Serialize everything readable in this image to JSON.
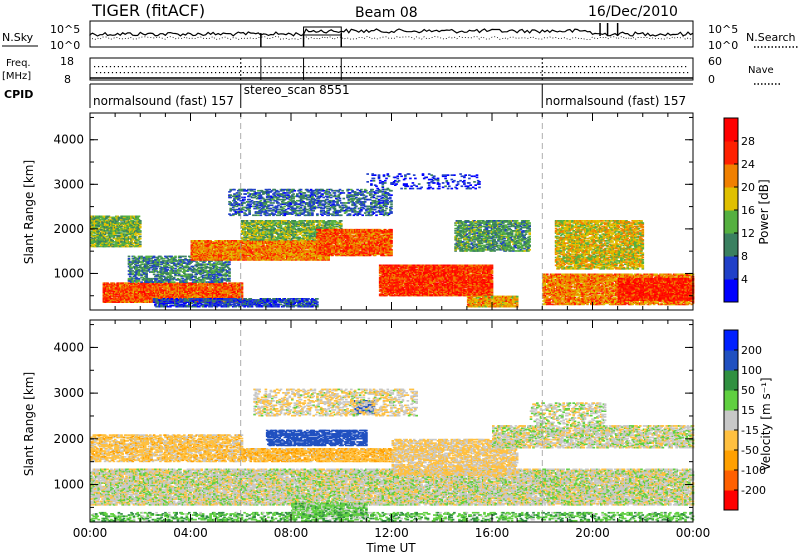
{
  "header": {
    "radar": "TIGER (fitACF)",
    "beam": "Beam 08",
    "date": "16/Dec/2010"
  },
  "status_panels": {
    "nsky_label": "N.Sky",
    "nsky_ticks": [
      "10^5",
      "10^0"
    ],
    "nsearch_label": "N.Search",
    "nsearch_ticks": [
      "10^5",
      "10^0"
    ],
    "freq_label": "Freq.",
    "freq_unit": "[MHz]",
    "freq_ticks": [
      "18",
      "8"
    ],
    "nave_label": "Nave",
    "nave_ticks": [
      "60",
      "0"
    ],
    "cpid_label": "CPID"
  },
  "cpid_segments": [
    {
      "label": "normalsound (fast) 157",
      "start_hour": 0,
      "end_hour": 6
    },
    {
      "label": "stereo_scan 8551",
      "start_hour": 6,
      "end_hour": 18
    },
    {
      "label": "normalsound (fast) 157",
      "start_hour": 18,
      "end_hour": 24
    }
  ],
  "chart_data": [
    {
      "type": "heatmap",
      "title": "",
      "xlabel": "",
      "ylabel": "Slant Range [km]",
      "xlim": [
        0,
        24
      ],
      "ylim": [
        180,
        4600
      ],
      "y_ticks": [
        "4000",
        "3000",
        "2000",
        "1000"
      ],
      "colorbar_label": "Power [dB]",
      "colorbar_ticks": [
        "28",
        "24",
        "20",
        "16",
        "12",
        "8",
        "4"
      ],
      "colorbar_colors": [
        "#0000ff",
        "#2040c8",
        "#3a8060",
        "#55b040",
        "#e0c000",
        "#f08000",
        "#ff2000",
        "#ff0000"
      ],
      "bands": [
        {
          "t0": 0.0,
          "t1": 2.0,
          "r0": 1600,
          "r1": 2300,
          "level": 14,
          "density": 0.7
        },
        {
          "t0": 0.5,
          "t1": 6.0,
          "r0": 350,
          "r1": 800,
          "level": 24,
          "density": 0.85
        },
        {
          "t0": 1.5,
          "t1": 5.5,
          "r0": 800,
          "r1": 1400,
          "level": 10,
          "density": 0.45
        },
        {
          "t0": 4.0,
          "t1": 9.5,
          "r0": 1300,
          "r1": 1750,
          "level": 22,
          "density": 0.85
        },
        {
          "t0": 6.0,
          "t1": 10.0,
          "r0": 1750,
          "r1": 2200,
          "level": 14,
          "density": 0.6
        },
        {
          "t0": 5.5,
          "t1": 12.0,
          "r0": 2300,
          "r1": 2900,
          "level": 8,
          "density": 0.35
        },
        {
          "t0": 9.0,
          "t1": 12.0,
          "r0": 1400,
          "r1": 2000,
          "level": 24,
          "density": 0.8
        },
        {
          "t0": 11.5,
          "t1": 16.0,
          "r0": 500,
          "r1": 1200,
          "level": 26,
          "density": 0.85
        },
        {
          "t0": 14.5,
          "t1": 17.5,
          "r0": 1500,
          "r1": 2200,
          "level": 12,
          "density": 0.55
        },
        {
          "t0": 15.0,
          "t1": 17.0,
          "r0": 250,
          "r1": 500,
          "level": 20,
          "density": 0.8
        },
        {
          "t0": 18.5,
          "t1": 22.0,
          "r0": 1100,
          "r1": 2200,
          "level": 18,
          "density": 0.6
        },
        {
          "t0": 18.0,
          "t1": 24.0,
          "r0": 300,
          "r1": 1000,
          "level": 22,
          "density": 0.7
        },
        {
          "t0": 21.0,
          "t1": 24.0,
          "r0": 400,
          "r1": 900,
          "level": 27,
          "density": 0.85
        },
        {
          "t0": 2.5,
          "t1": 9.0,
          "r0": 250,
          "r1": 450,
          "level": 6,
          "density": 0.6
        },
        {
          "t0": 11.0,
          "t1": 15.5,
          "r0": 2900,
          "r1": 3250,
          "level": 4,
          "density": 0.12
        }
      ]
    },
    {
      "type": "heatmap",
      "title": "",
      "xlabel": "Time UT",
      "ylabel": "Slant Range [km]",
      "xlim": [
        0,
        24
      ],
      "ylim": [
        180,
        4600
      ],
      "x_ticks": [
        "00:00",
        "04:00",
        "08:00",
        "12:00",
        "16:00",
        "20:00",
        "00:00"
      ],
      "y_ticks": [
        "4000",
        "3000",
        "2000",
        "1000"
      ],
      "colorbar_label": "Velocity [m s⁻¹]",
      "colorbar_ticks": [
        "200",
        "100",
        "50",
        "15",
        "-15",
        "-50",
        "-100",
        "-200"
      ],
      "colorbar_colors": [
        "#ff0000",
        "#ff6000",
        "#ffa000",
        "#ffc040",
        "#c8c8c8",
        "#60d040",
        "#309040",
        "#2050c0",
        "#0020ff"
      ],
      "bands": [
        {
          "t0": 0.0,
          "t1": 24.0,
          "r0": 550,
          "r1": 1350,
          "level": 0,
          "density": 0.65
        },
        {
          "t0": 0.0,
          "t1": 6.0,
          "r0": 1500,
          "r1": 2100,
          "level": -30,
          "density": 0.55
        },
        {
          "t0": 6.0,
          "t1": 12.0,
          "r0": 1500,
          "r1": 1800,
          "level": -40,
          "density": 0.65
        },
        {
          "t0": 7.0,
          "t1": 11.0,
          "r0": 1850,
          "r1": 2200,
          "level": 150,
          "density": 0.55
        },
        {
          "t0": 10.5,
          "t1": 11.3,
          "r0": 2550,
          "r1": 2850,
          "level": 150,
          "density": 0.6
        },
        {
          "t0": 8.0,
          "t1": 11.0,
          "r0": 300,
          "r1": 600,
          "level": 30,
          "density": 0.6
        },
        {
          "t0": 12.0,
          "t1": 17.0,
          "r0": 1200,
          "r1": 2000,
          "level": -20,
          "density": 0.55
        },
        {
          "t0": 16.0,
          "t1": 24.0,
          "r0": 1800,
          "r1": 2300,
          "level": 0,
          "density": 0.5
        },
        {
          "t0": 17.5,
          "t1": 20.5,
          "r0": 2300,
          "r1": 2800,
          "level": 0,
          "density": 0.3
        },
        {
          "t0": 0.0,
          "t1": 24.0,
          "r0": 200,
          "r1": 400,
          "level": 40,
          "density": 0.3
        },
        {
          "t0": 6.5,
          "t1": 13.0,
          "r0": 2500,
          "r1": 3100,
          "level": -10,
          "density": 0.3
        }
      ]
    }
  ]
}
